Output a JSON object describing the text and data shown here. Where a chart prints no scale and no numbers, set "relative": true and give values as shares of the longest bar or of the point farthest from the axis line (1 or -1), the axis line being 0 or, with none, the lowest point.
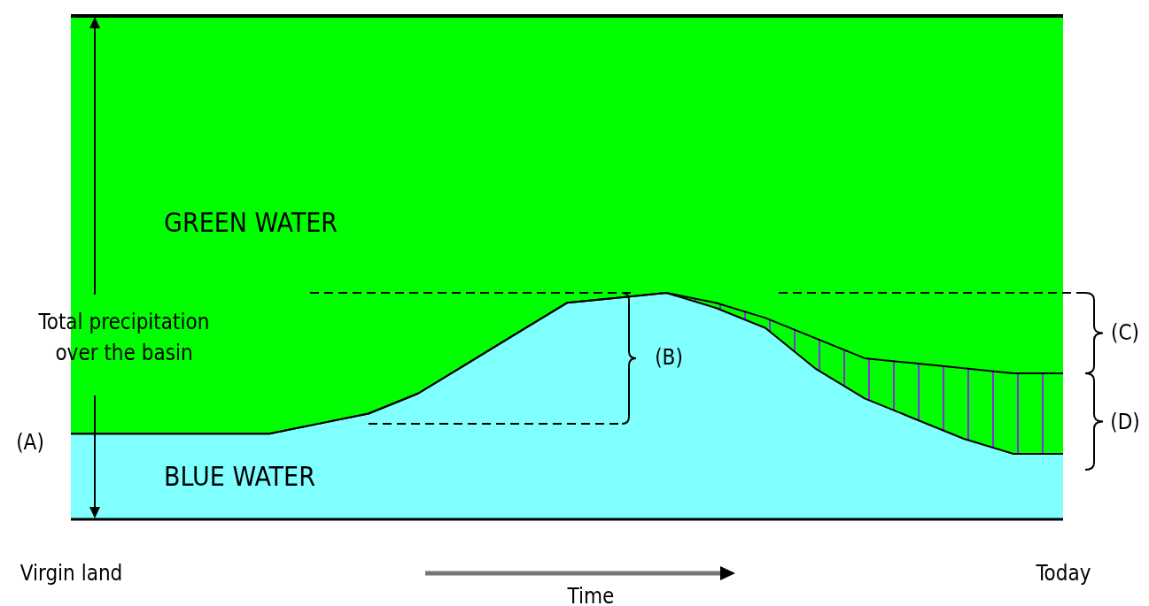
{
  "chart_data": {
    "type": "area",
    "stacked": true,
    "relative": true,
    "xlabel": "Time",
    "categories": [
      "Virgin land",
      null,
      null,
      null,
      null,
      null,
      null,
      null,
      null,
      null,
      null,
      null,
      null,
      null,
      null,
      null,
      null,
      null,
      null,
      null,
      "Today"
    ],
    "series": [
      {
        "name": "BLUE WATER",
        "color": "#80ffff",
        "values": [
          0.17,
          0.17,
          0.17,
          0.17,
          0.17,
          0.19,
          0.21,
          0.25,
          0.31,
          0.37,
          0.43,
          0.44,
          0.45,
          0.42,
          0.38,
          0.3,
          0.24,
          0.2,
          0.16,
          0.13,
          0.13
        ]
      },
      {
        "color": "#00ff00",
        "values": [
          0,
          0,
          0,
          0,
          0,
          0,
          0,
          0,
          0,
          0,
          0,
          0,
          0,
          0.01,
          0.02,
          0.06,
          0.08,
          0.11,
          0.14,
          0.16,
          0.16
        ]
      },
      {
        "name": "GREEN WATER",
        "color": "#00ff00",
        "values": [
          0.83,
          0.83,
          0.83,
          0.83,
          0.83,
          0.81,
          0.79,
          0.75,
          0.69,
          0.63,
          0.57,
          0.56,
          0.55,
          0.57,
          0.6,
          0.64,
          0.68,
          0.69,
          0.7,
          0.71,
          0.71
        ]
      }
    ],
    "ref_lines": [
      {
        "axis": "y",
        "value": 0.45,
        "line_style": "dashed"
      },
      {
        "axis": "y",
        "value": 0.19,
        "line_style": "dashed"
      }
    ],
    "annotations": [
      "Total precipitation over the basin",
      "(A)",
      "(B)",
      "(C)",
      "(D)"
    ]
  }
}
